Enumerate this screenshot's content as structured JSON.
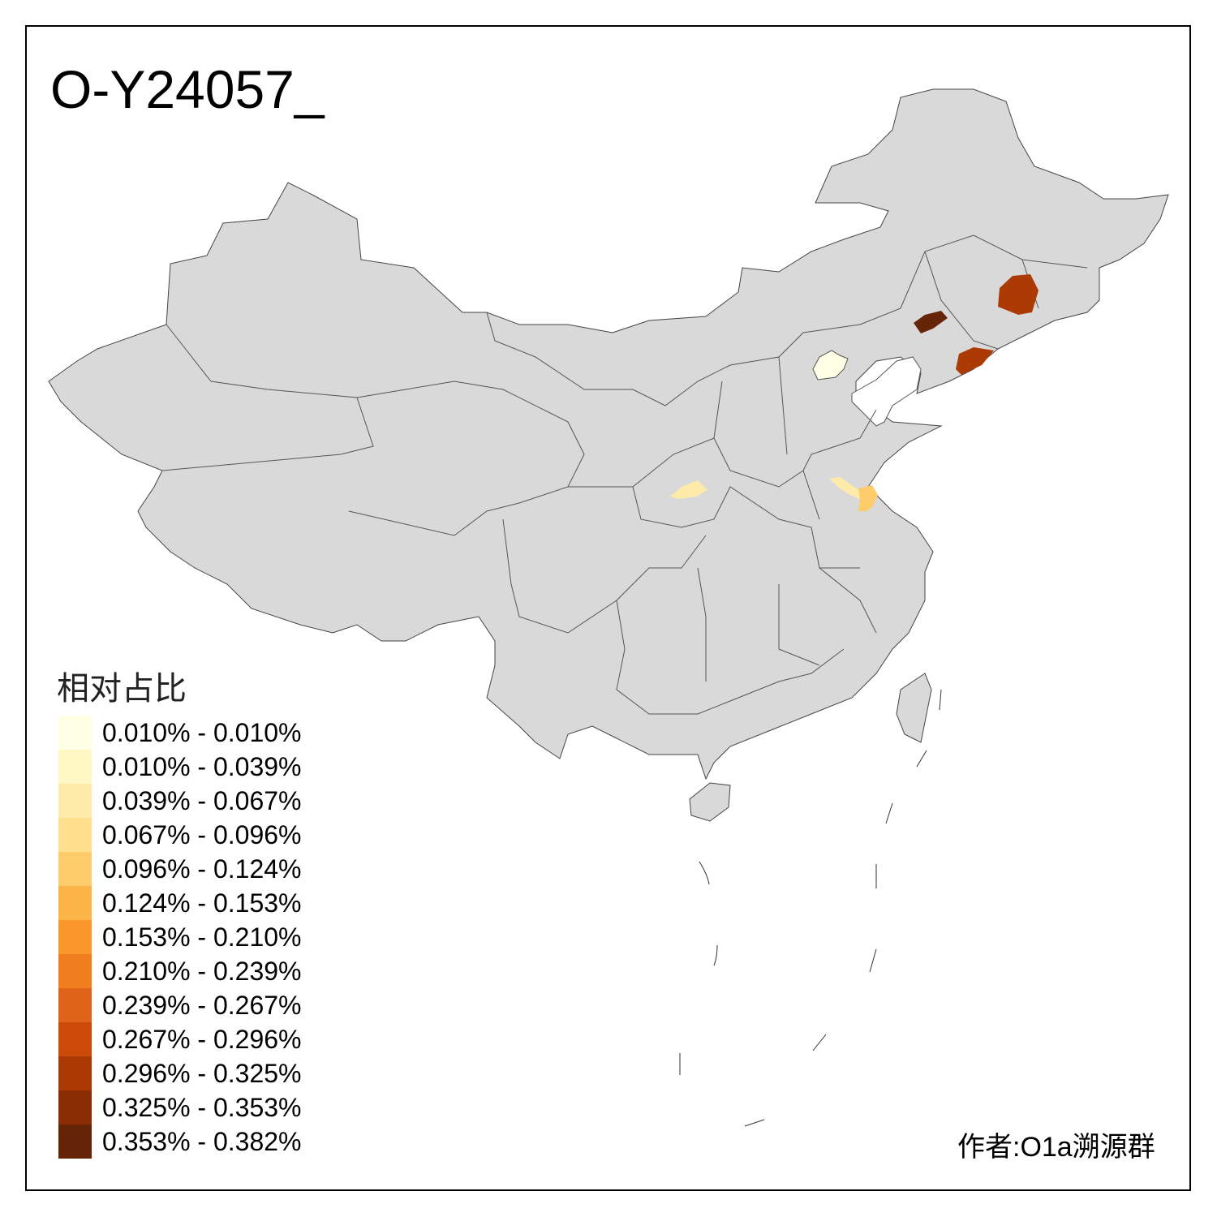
{
  "title": "O-Y24057_",
  "legend": {
    "title": "相对占比",
    "items": [
      {
        "label": "0.010% - 0.010%",
        "color": "#FFFFE5"
      },
      {
        "label": "0.010% - 0.039%",
        "color": "#FFF7C4"
      },
      {
        "label": "0.039% - 0.067%",
        "color": "#FEEBA9"
      },
      {
        "label": "0.067% - 0.096%",
        "color": "#FEE08E"
      },
      {
        "label": "0.096% - 0.124%",
        "color": "#FECC6A"
      },
      {
        "label": "0.124% - 0.153%",
        "color": "#FDB446"
      },
      {
        "label": "0.153% - 0.210%",
        "color": "#F9972A"
      },
      {
        "label": "0.210% - 0.239%",
        "color": "#F07E1F"
      },
      {
        "label": "0.239% - 0.267%",
        "color": "#E0631A"
      },
      {
        "label": "0.267% - 0.296%",
        "color": "#CC4B0A"
      },
      {
        "label": "0.296% - 0.325%",
        "color": "#AB3A04"
      },
      {
        "label": "0.325% - 0.353%",
        "color": "#8A2D04"
      },
      {
        "label": "0.353% - 0.382%",
        "color": "#662506"
      }
    ]
  },
  "map": {
    "base_color": "#D9D9D9",
    "border_color": "#555555"
  },
  "author": "作者:O1a溯源群"
}
